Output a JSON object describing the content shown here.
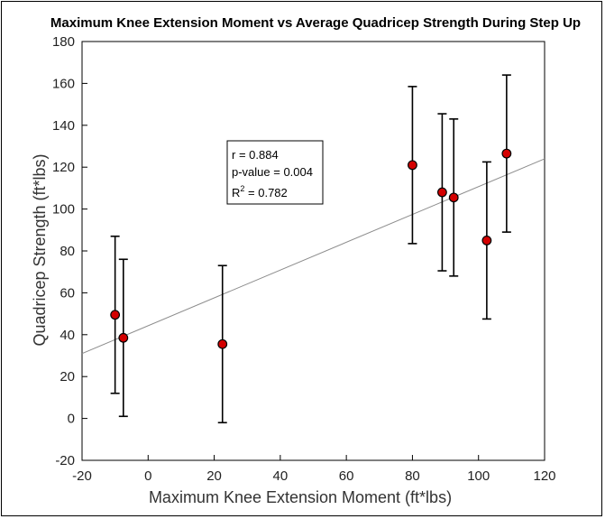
{
  "chart_data": {
    "type": "scatter",
    "title": "Maximum Knee Extension Moment vs Average Quadricep Strength During Step Up",
    "xlabel": "Maximum Knee Extension Moment (ft*lbs)",
    "ylabel": "Quadricep Strength (ft*lbs)",
    "xlim": [
      -20,
      120
    ],
    "ylim": [
      -20,
      180
    ],
    "xticks": [
      -20,
      0,
      20,
      40,
      60,
      80,
      100,
      120
    ],
    "yticks": [
      -20,
      0,
      20,
      40,
      60,
      80,
      100,
      120,
      140,
      160,
      180
    ],
    "grid": false,
    "points": [
      {
        "x": -10,
        "y": 49.5,
        "err": 37.5
      },
      {
        "x": -7.5,
        "y": 38.5,
        "err": 37.5
      },
      {
        "x": 22.5,
        "y": 35.5,
        "err": 37.5
      },
      {
        "x": 80,
        "y": 121,
        "err": 37.5
      },
      {
        "x": 89,
        "y": 108,
        "err": 37.5
      },
      {
        "x": 92.5,
        "y": 105.5,
        "err": 37.5
      },
      {
        "x": 102.5,
        "y": 85,
        "err": 37.5
      },
      {
        "x": 108.5,
        "y": 126.5,
        "err": 37.5
      }
    ],
    "trendline": {
      "x": [
        -20,
        120
      ],
      "y": [
        31,
        124
      ]
    },
    "annotation": {
      "r_label": "r = 0.884",
      "p_label": "p-value = 0.004",
      "r2_prefix": "R",
      "r2_sup": "2",
      "r2_suffix": " = 0.782"
    },
    "colors": {
      "marker": "#d40000",
      "marker_edge": "#000000",
      "errorbar": "#000000",
      "trendline": "#8c8c8c"
    }
  }
}
